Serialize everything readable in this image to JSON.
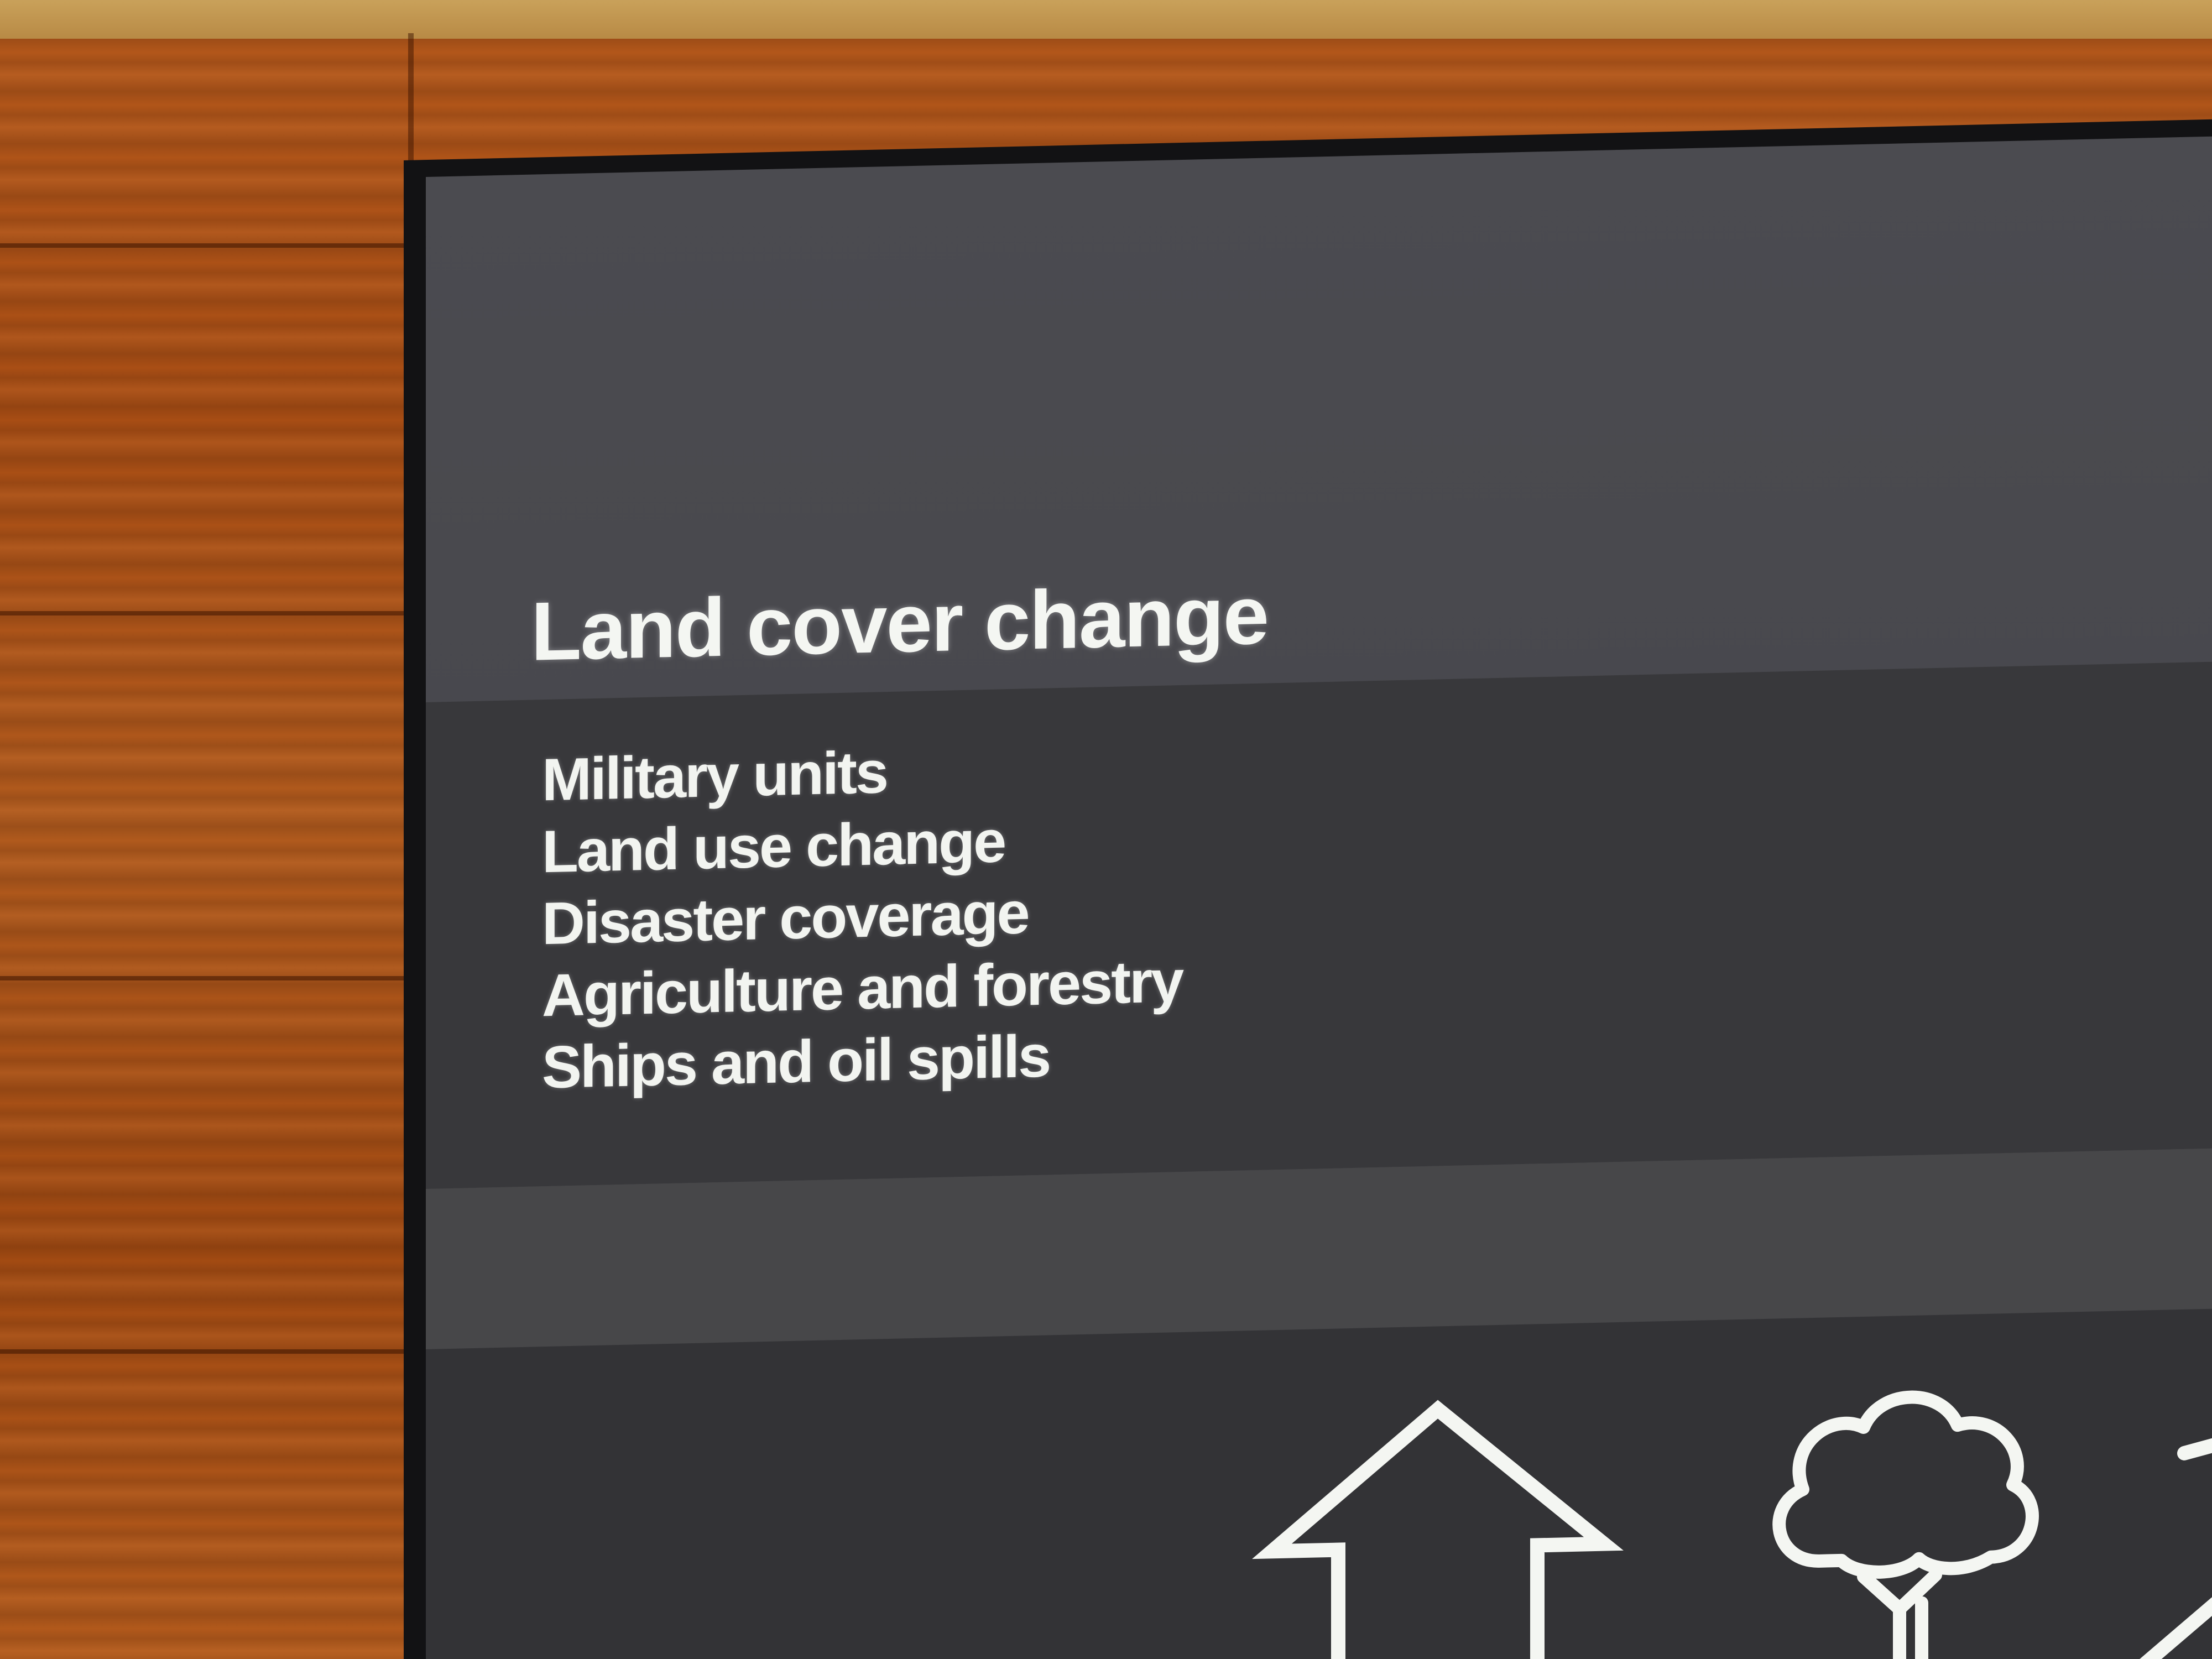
{
  "slide": {
    "title": "Land cover change",
    "items": [
      "Military units",
      "Land use change",
      "Disaster coverage",
      "Agriculture and forestry",
      "Ships and oil spills"
    ]
  },
  "icons": [
    "house-outline-icon",
    "tree-outline-icon",
    "slope-line-icon"
  ],
  "colors": {
    "wood": "#b15a1d",
    "screen": "#48484d",
    "text": "#f4f6f2"
  }
}
